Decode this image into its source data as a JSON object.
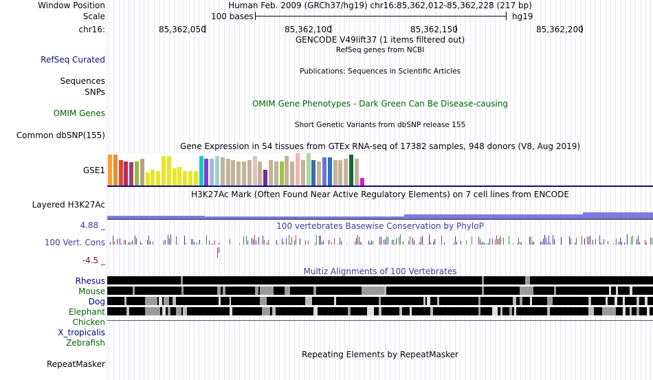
{
  "header": {
    "window_position_label": "Window Position",
    "scale_label": "Scale",
    "chrom_label": "chr16:",
    "assembly_info": "Human Feb. 2009 (GRCh37/hg19)   chr16:85,362,012-85,362,228 (217 bp)",
    "scale_text": "100 bases",
    "scale_db": "hg19",
    "ruler_ticks": [
      "85,362,050",
      "85,362,100",
      "85,362,150",
      "85,362,200"
    ]
  },
  "tracks": {
    "gencode_title": "GENCODE V49lift37 (1 items filtered out)",
    "refseq_label": "RefSeq Curated",
    "refseq_title": "RefSeq genes from NCBI",
    "publications_title": "Publications: Sequences in Scientific Articles",
    "sequences_label": "Sequences",
    "snps_label": "SNPs",
    "omim_label": "OMIM Genes",
    "omim_title": "OMIM Gene Phenotypes - Dark Green Can Be Disease-causing",
    "dbsnp_title": "Short Genetic Variants from dbSNP release 155",
    "dbsnp_label": "Common dbSNP(155)",
    "gtex_title": "Gene Expression in 54 tissues from GTEx RNA-seq of 17382 samples, 948 donors (V8, Aug 2019)",
    "gtex_label": "GSE1",
    "h3k27ac_label": "Layered H3K27Ac",
    "h3k27ac_title": "H3K27Ac Mark (Often Found Near Active Regulatory Elements) on 7 cell lines from ENCODE",
    "cons_max": "4.88 _",
    "cons_label": "100 Vert. Cons",
    "cons_min": "-4.5 _",
    "cons_title": "100 vertebrates Basewise Conservation by PhyloP",
    "multiz_title": "Multiz Alignments of 100 Vertebrates",
    "species": [
      "Rhesus",
      "Mouse",
      "Dog",
      "Elephant",
      "Chicken",
      "X_tropicalis",
      "Zebrafish"
    ],
    "repeatmasker_label": "RepeatMasker",
    "repeatmasker_title": "Repeating Elements by RepeatMasker"
  },
  "colors": {
    "refseq": "#0c0c78",
    "omim": "#006400",
    "conservation": "#3c3c9a",
    "conservation_min": "#781818",
    "species_blue": "#000080",
    "species_green": "#006400"
  }
}
